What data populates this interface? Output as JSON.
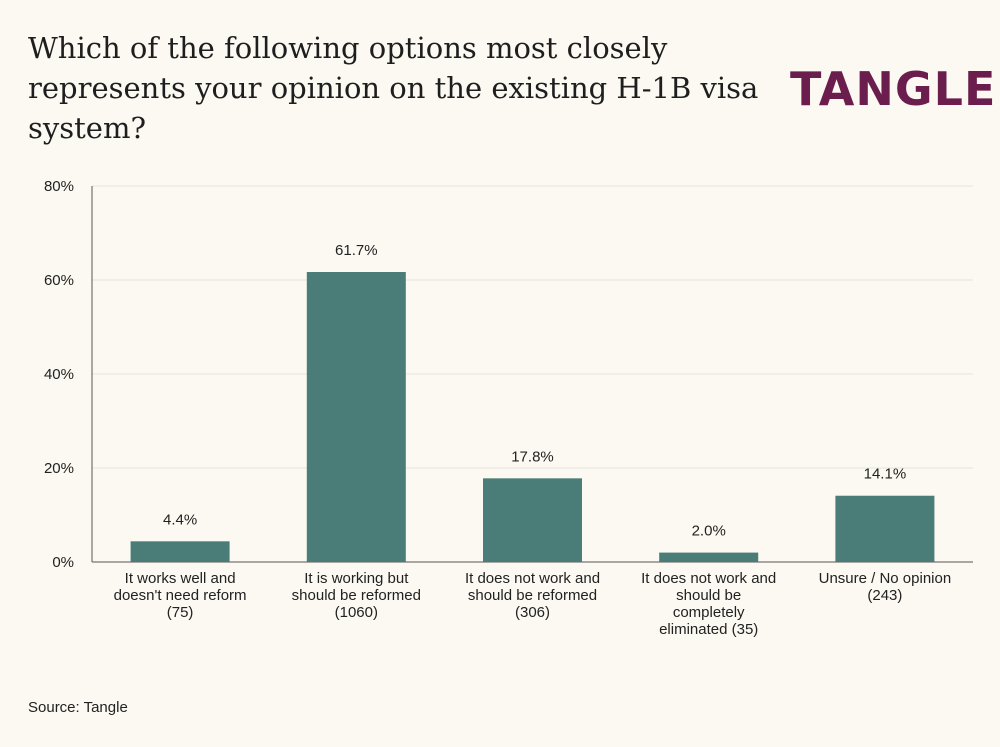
{
  "header": {
    "title_lines": [
      "Which of the following options most closely",
      "represents your opinion on the existing H-1B visa",
      "system?"
    ],
    "logo_text": "TANGLE"
  },
  "footer": {
    "source": "Source: Tangle"
  },
  "colors": {
    "bar": "#4a7c78",
    "background": "#fbf9f1",
    "logo": "#6b1e4d"
  },
  "chart_data": {
    "type": "bar",
    "title": "Which of the following options most closely represents your opinion on the existing H-1B visa system?",
    "categories": [
      [
        "It works well and",
        "doesn't need reform",
        "(75)"
      ],
      [
        "It is working but",
        "should be reformed",
        "(1060)"
      ],
      [
        "It does not work and",
        "should be reformed",
        "(306)"
      ],
      [
        "It does not work and",
        "should be",
        "completely",
        "eliminated (35)"
      ],
      [
        "Unsure / No opinion",
        "(243)"
      ]
    ],
    "values": [
      4.4,
      61.7,
      17.8,
      2.0,
      14.1
    ],
    "data_labels": [
      "4.4%",
      "61.7%",
      "17.8%",
      "2.0%",
      "14.1%"
    ],
    "ylim": [
      0,
      80
    ],
    "yticks": [
      0,
      20,
      40,
      60,
      80
    ],
    "ytick_labels": [
      "0%",
      "20%",
      "40%",
      "60%",
      "80%"
    ],
    "xlabel": "",
    "ylabel": "",
    "grid": true,
    "legend": false
  }
}
